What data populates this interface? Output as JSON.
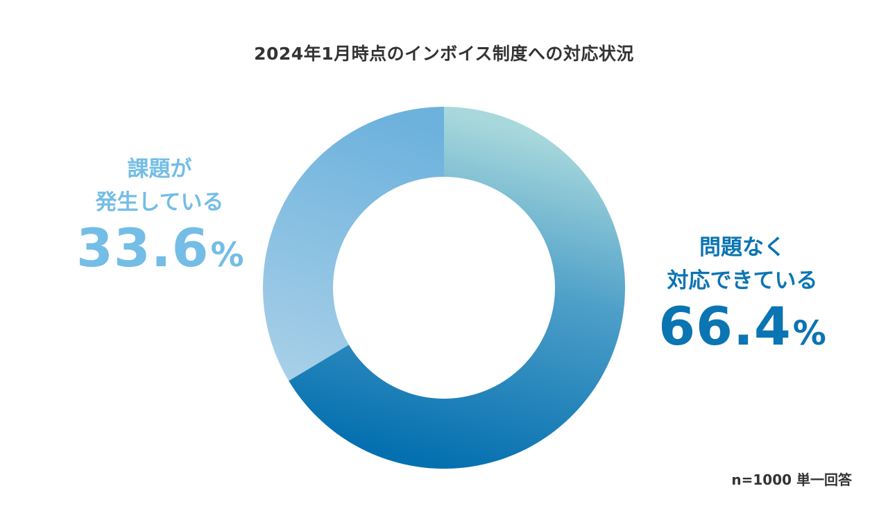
{
  "colors": {
    "issue": "#74bde6",
    "ok": "#0b74b2",
    "title_text": "#333333"
  },
  "chart_data": {
    "type": "pie",
    "title": "2024年1月時点のインボイス制度への対応状況",
    "donut": true,
    "slices": [
      {
        "label_lines": [
          "問題なく",
          "対応できている"
        ],
        "value": 66.4,
        "value_text": "66.4",
        "unit": "%",
        "color": "#0b74b2"
      },
      {
        "label_lines": [
          "課題が",
          "発生している"
        ],
        "value": 33.6,
        "value_text": "33.6",
        "unit": "%",
        "color": "#74bde6"
      }
    ],
    "footnote": "n=1000 単一回答"
  }
}
